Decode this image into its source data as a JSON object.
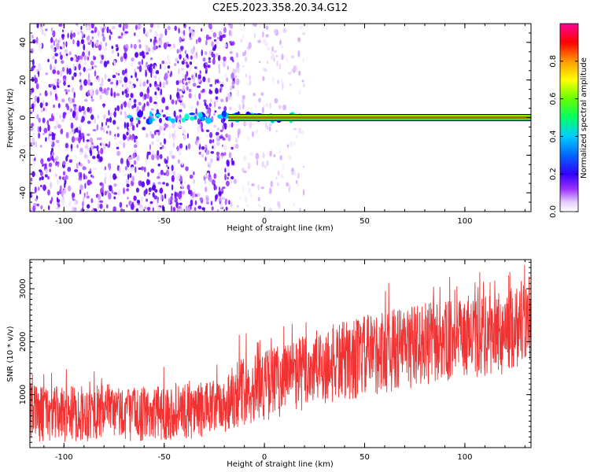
{
  "title": "C2E5.2023.358.20.34.G12",
  "colors": {
    "spectrogram_low": "#6600ff",
    "snr_line": "#f03232",
    "axis": "#000000"
  },
  "chart_data": [
    {
      "type": "heatmap",
      "xlabel": "Height of straight line (km)",
      "ylabel": "Frequency (Hz)",
      "xlim": [
        -117,
        133
      ],
      "ylim": [
        -50,
        50
      ],
      "xticks": [
        -100,
        -50,
        0,
        50,
        100
      ],
      "yticks": [
        -40,
        -20,
        0,
        20,
        40
      ],
      "colorbar": {
        "label": "Normalized spectral amplitude",
        "range": [
          0,
          1
        ],
        "ticks": [
          "0.0",
          "0.2",
          "0.4",
          "0.6",
          "0.8"
        ],
        "colormap": "rainbow (violet to magenta)"
      },
      "features": [
        {
          "description": "broadband noise",
          "x_range": [
            -117,
            -15
          ],
          "freq_range": [
            -50,
            50
          ],
          "level": 0.15
        },
        {
          "description": "sparse noise",
          "x_range": [
            -15,
            20
          ],
          "freq_range": [
            -50,
            50
          ],
          "level": 0.05
        },
        {
          "description": "carrier line",
          "x_range": [
            -70,
            133
          ],
          "frequency": 0,
          "level": 0.9
        }
      ]
    },
    {
      "type": "line",
      "xlabel": "Height of straight line (km)",
      "ylabel": "SNR (10 * v/v)",
      "xlim": [
        -117,
        133
      ],
      "ylim": [
        0,
        3550
      ],
      "xticks": [
        -100,
        -50,
        0,
        50,
        100
      ],
      "yticks": [
        1000,
        2000,
        3000
      ],
      "series": [
        {
          "x": [
            -117,
            -100,
            -80,
            -60,
            -40,
            -20,
            -15,
            -10,
            0,
            20,
            40,
            60,
            80,
            100,
            120,
            133
          ],
          "upper": [
            1200,
            1150,
            1200,
            1150,
            1200,
            1300,
            1700,
            1700,
            1850,
            2150,
            2400,
            2600,
            2750,
            2800,
            2950,
            3400
          ],
          "lower": [
            100,
            100,
            120,
            120,
            150,
            200,
            350,
            400,
            500,
            650,
            850,
            1000,
            1150,
            1250,
            1350,
            1600
          ]
        }
      ]
    }
  ]
}
